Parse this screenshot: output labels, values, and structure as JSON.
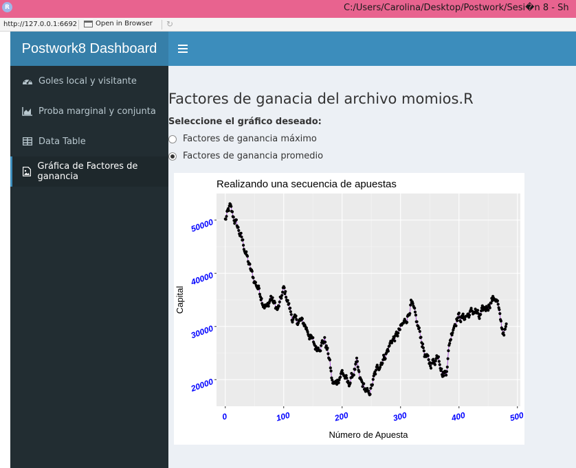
{
  "window": {
    "app_icon": "R",
    "title": "C:/Users/Carolina/Desktop/Postwork/Sesi�n 8 - Sh"
  },
  "address_bar": {
    "url": "http://127.0.0.1:6692",
    "open_in_browser": "Open in Browser"
  },
  "header": {
    "logo": "Postwork8 Dashboard"
  },
  "sidebar": {
    "items": [
      {
        "label": "Goles local y visitante",
        "icon": "dashboard-icon"
      },
      {
        "label": "Proba marginal y conjunta",
        "icon": "area-chart-icon"
      },
      {
        "label": "Data Table",
        "icon": "table-icon"
      },
      {
        "label": "Gráfica de Factores de ganancia",
        "icon": "file-image-icon",
        "active": true
      }
    ]
  },
  "main": {
    "title": "Factores de ganacia del archivo momios.R",
    "radio_label": "Seleccione el gráfico deseado:",
    "options": [
      {
        "label": "Factores de ganancia máximo",
        "checked": false
      },
      {
        "label": "Factores de ganancia promedio",
        "checked": true
      }
    ]
  },
  "chart_data": {
    "type": "line",
    "title": "Realizando una secuencia de apuestas",
    "xlabel": "Número de Apuesta",
    "ylabel": "Capital",
    "xlim": [
      -15,
      505
    ],
    "ylim": [
      15000,
      55000
    ],
    "xticks": [
      0,
      100,
      200,
      300,
      400,
      500
    ],
    "yticks": [
      20000,
      30000,
      40000,
      50000
    ],
    "tick_label_color": "#0000ff",
    "panel_background": "#ebebeb",
    "line_color": "#9b30d0",
    "point_color": "#000000",
    "grid": true,
    "n_points": 482,
    "series": [
      {
        "keypoints_x": [
          0,
          5,
          8,
          12,
          20,
          28,
          35,
          42,
          50,
          58,
          65,
          72,
          78,
          85,
          90,
          95,
          100,
          105,
          110,
          115,
          120,
          128,
          135,
          142,
          148,
          155,
          162,
          170,
          178,
          183,
          188,
          195,
          200,
          205,
          210,
          215,
          220,
          225,
          230,
          238,
          245,
          250,
          255,
          262,
          270,
          278,
          285,
          292,
          300,
          308,
          314,
          318,
          322,
          328,
          335,
          342,
          350,
          358,
          365,
          372,
          378,
          384,
          390,
          398,
          405,
          412,
          420,
          428,
          435,
          442,
          450,
          456,
          462,
          466,
          470,
          475,
          480,
          482
        ],
        "keypoints_y": [
          50000,
          51500,
          52500,
          51000,
          49000,
          46500,
          44000,
          41000,
          38500,
          37000,
          34500,
          33500,
          35500,
          34000,
          33000,
          35000,
          37000,
          35500,
          33500,
          31500,
          31000,
          31000,
          30500,
          29000,
          27500,
          26000,
          26500,
          27500,
          24000,
          19500,
          19000,
          20500,
          21500,
          20500,
          19000,
          20000,
          21500,
          23000,
          20000,
          18500,
          17000,
          18500,
          20500,
          22500,
          24000,
          25500,
          27500,
          28000,
          29500,
          31000,
          32500,
          34500,
          33000,
          30500,
          28000,
          24500,
          23000,
          23500,
          25000,
          21000,
          21500,
          27000,
          30000,
          32000,
          31500,
          32000,
          32500,
          33000,
          31500,
          33000,
          34000,
          35000,
          35500,
          34500,
          31500,
          29000,
          29500,
          30000
        ]
      }
    ]
  }
}
